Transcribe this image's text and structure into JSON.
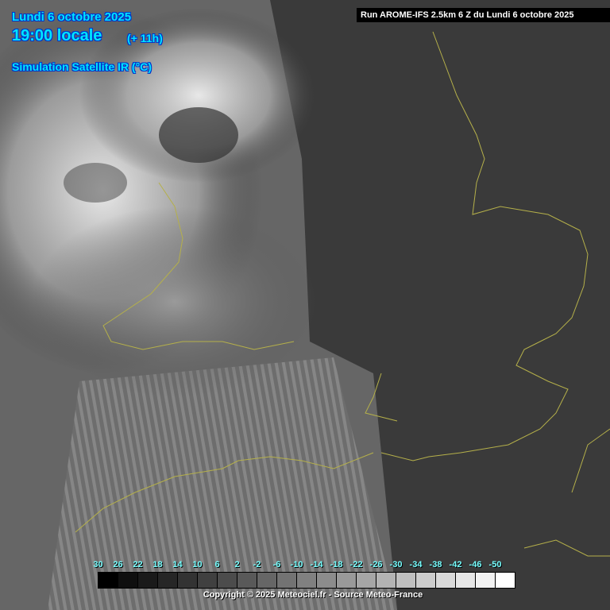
{
  "header": {
    "date": "Lundi 6 octobre 2025",
    "time": "19:00 locale",
    "lead": "(+ 11h)",
    "product": "Simulation Satellite IR (°C)",
    "run": "Run AROME-IFS 2.5km 6 Z du Lundi 6 octobre 2025"
  },
  "legend": {
    "labels": [
      "30",
      "26",
      "22",
      "18",
      "14",
      "10",
      "6",
      "2",
      "-2",
      "-6",
      "-10",
      "-14",
      "-18",
      "-22",
      "-26",
      "-30",
      "-34",
      "-38",
      "-42",
      "-46",
      "-50"
    ],
    "colors": [
      "#000000",
      "#0f0f0f",
      "#1a1a1a",
      "#262626",
      "#333333",
      "#404040",
      "#4c4c4c",
      "#595959",
      "#666666",
      "#737373",
      "#808080",
      "#8c8c8c",
      "#999999",
      "#a6a6a6",
      "#b3b3b3",
      "#bfbfbf",
      "#cccccc",
      "#d9d9d9",
      "#e6e6e6",
      "#f2f2f2",
      "#ffffff"
    ]
  },
  "footer": {
    "copyright": "Copyright © 2025 Meteociel.fr - Source Meteo-France"
  },
  "colors": {
    "title": "#00e5ff",
    "coastline": "#b5b04a",
    "background": "#3a3a3a"
  }
}
